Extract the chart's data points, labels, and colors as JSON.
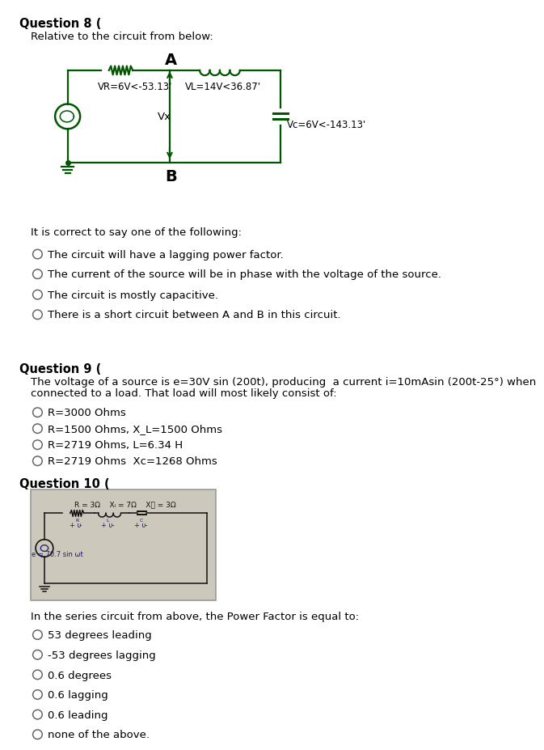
{
  "bg_color": "#ffffff",
  "q8_title": "Question 8 (",
  "q8_subtitle": "Relative to the circuit from below:",
  "circuit_color": "#005500",
  "circuit_label_A": "A",
  "circuit_label_B": "B",
  "circuit_VR": "VR=6V<-53.13'",
  "circuit_VL": "VL=14V<36.87'",
  "circuit_Vx": "Vx",
  "circuit_Vc": "Vc=6V<-143.13'",
  "q8_instruction": "It is correct to say one of the following:",
  "q8_options": [
    "The circuit will have a lagging power factor.",
    "The current of the source will be in phase with the voltage of the source.",
    "The circuit is mostly capacitive.",
    "There is a short circuit between A and B in this circuit."
  ],
  "q9_title": "Question 9 (",
  "q9_line1": "The voltage of a source is e=30V sin (200t), producing  a current i=10mAsin (200t-25°) when",
  "q9_line2": "connected to a load. That load will most likely consist of:",
  "q9_options": [
    "R=3000 Ohms",
    "R=1500 Ohms, X_L=1500 Ohms",
    "R=2719 Ohms, L=6.34 H",
    "R=2719 Ohms  Xc=1268 Ohms"
  ],
  "q10_title": "Question 10 (",
  "q10_instruction": "In the series circuit from above, the Power Factor is equal to:",
  "q10_options": [
    "53 degrees leading",
    "-53 degrees lagging",
    "0.6 degrees",
    "0.6 lagging",
    "0.6 leading",
    "none of the above."
  ],
  "font_color": "#000000",
  "radio_color": "#666666",
  "circuit_dark": "#003300",
  "img_bg": "#ccc8bc"
}
